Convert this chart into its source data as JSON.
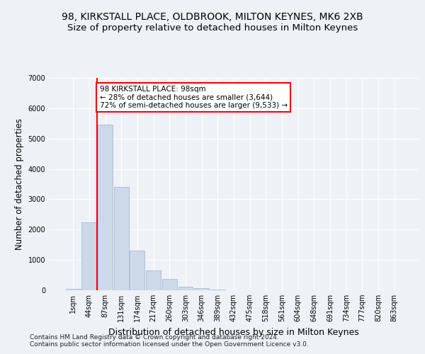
{
  "title_line1": "98, KIRKSTALL PLACE, OLDBROOK, MILTON KEYNES, MK6 2XB",
  "title_line2": "Size of property relative to detached houses in Milton Keynes",
  "xlabel": "Distribution of detached houses by size in Milton Keynes",
  "ylabel": "Number of detached properties",
  "footnote1": "Contains HM Land Registry data © Crown copyright and database right 2024.",
  "footnote2": "Contains public sector information licensed under the Open Government Licence v3.0.",
  "bar_labels": [
    "1sqm",
    "44sqm",
    "87sqm",
    "131sqm",
    "174sqm",
    "217sqm",
    "260sqm",
    "303sqm",
    "346sqm",
    "389sqm",
    "432sqm",
    "475sqm",
    "518sqm",
    "561sqm",
    "604sqm",
    "648sqm",
    "691sqm",
    "734sqm",
    "777sqm",
    "820sqm",
    "863sqm"
  ],
  "bar_values": [
    50,
    2250,
    5450,
    3400,
    1300,
    650,
    380,
    120,
    60,
    15,
    5,
    2,
    0,
    0,
    0,
    0,
    0,
    0,
    0,
    0,
    0
  ],
  "bar_color": "#ccd9e8",
  "bar_edge_color": "#aabbd0",
  "vline_x": 2,
  "vline_color": "red",
  "annotation_text": "98 KIRKSTALL PLACE: 98sqm\n← 28% of detached houses are smaller (3,644)\n72% of semi-detached houses are larger (9,533) →",
  "annotation_box_facecolor": "white",
  "annotation_box_edgecolor": "red",
  "ylim": [
    0,
    7000
  ],
  "yticks": [
    0,
    1000,
    2000,
    3000,
    4000,
    5000,
    6000,
    7000
  ],
  "background_color": "#eef2f7",
  "title_fontsize": 10,
  "subtitle_fontsize": 9.5,
  "ylabel_fontsize": 8.5,
  "xlabel_fontsize": 9,
  "tick_fontsize": 7,
  "annotation_fontsize": 7.5,
  "footnote_fontsize": 6.5
}
